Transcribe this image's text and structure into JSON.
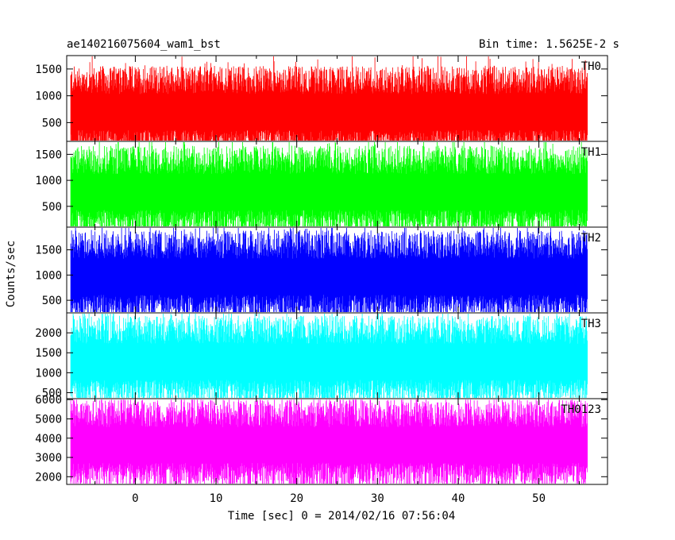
{
  "header": {
    "left_title": "ae140216075604_wam1_bst",
    "right_title": "Bin time: 1.5625E-2 s"
  },
  "chart_data": {
    "type": "line",
    "title": "ae140216075604_wam1_bst",
    "subtitle": "Bin time: 1.5625E-2 s",
    "xlabel": "Time [sec] 0 = 2014/02/16 07:56:04",
    "ylabel": "Counts/sec",
    "xlim": [
      -8.5,
      58.5
    ],
    "x_ticks": [
      0,
      10,
      20,
      30,
      40,
      50
    ],
    "data_x_range": [
      -8,
      56
    ],
    "bin_time": 0.015625,
    "panels": [
      {
        "name": "TH0",
        "color": "#ff0000",
        "ylim": [
          150,
          1750
        ],
        "y_ticks": [
          500,
          1000,
          1500
        ],
        "mean": 680,
        "min": 150,
        "max": 1750
      },
      {
        "name": "TH1",
        "color": "#00ff00",
        "ylim": [
          100,
          1750
        ],
        "y_ticks": [
          500,
          1000,
          1500
        ],
        "mean": 760,
        "min": 100,
        "max": 1750
      },
      {
        "name": "TH2",
        "color": "#0000ff",
        "ylim": [
          250,
          1950
        ],
        "y_ticks": [
          500,
          1000,
          1500
        ],
        "mean": 950,
        "min": 250,
        "max": 1950
      },
      {
        "name": "TH3",
        "color": "#00ffff",
        "ylim": [
          350,
          2500
        ],
        "y_ticks": [
          500,
          1000,
          1500,
          2000
        ],
        "mean": 1250,
        "min": 350,
        "max": 2500
      },
      {
        "name": "TH0123",
        "color": "#ff00ff",
        "ylim": [
          1600,
          6050
        ],
        "y_ticks": [
          2000,
          3000,
          4000,
          5000,
          6000
        ],
        "mean": 3600,
        "min": 1600,
        "max": 6000
      }
    ]
  }
}
